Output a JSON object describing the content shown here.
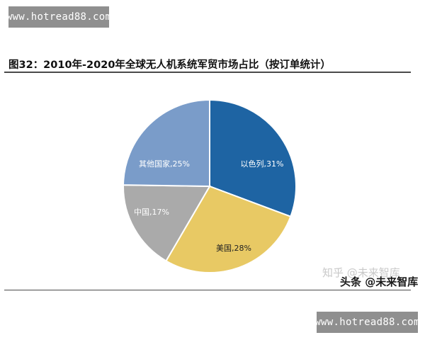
{
  "watermarks": {
    "top": "www.hotread88.com",
    "bottom": "www.hotread88.com"
  },
  "figure": {
    "title": "图32：2010年-2020年全球无人机系统军贸市场占比（按订单统计）"
  },
  "overlay": {
    "zhihu": "知乎 @未来智库",
    "toutiao": "头条 @未来智库"
  },
  "chart_data": {
    "type": "pie",
    "title": "图32：2010年-2020年全球无人机系统军贸市场占比（按订单统计）",
    "start_angle_deg": 0,
    "direction": "clockwise",
    "slices": [
      {
        "name": "以色列",
        "value": 31,
        "label": "以色列,31%",
        "color": "#1e64a3",
        "label_color": "#ffffff"
      },
      {
        "name": "美国",
        "value": 28,
        "label": "美国,28%",
        "color": "#e8c964",
        "label_color": "#222222"
      },
      {
        "name": "中国",
        "value": 17,
        "label": "中国,17%",
        "color": "#aaaaaa",
        "label_color": "#ffffff"
      },
      {
        "name": "其他国家",
        "value": 25,
        "label": "其他国家,25%",
        "color": "#7a9cc9",
        "label_color": "#ffffff"
      }
    ],
    "legend": "none",
    "grid": false
  }
}
